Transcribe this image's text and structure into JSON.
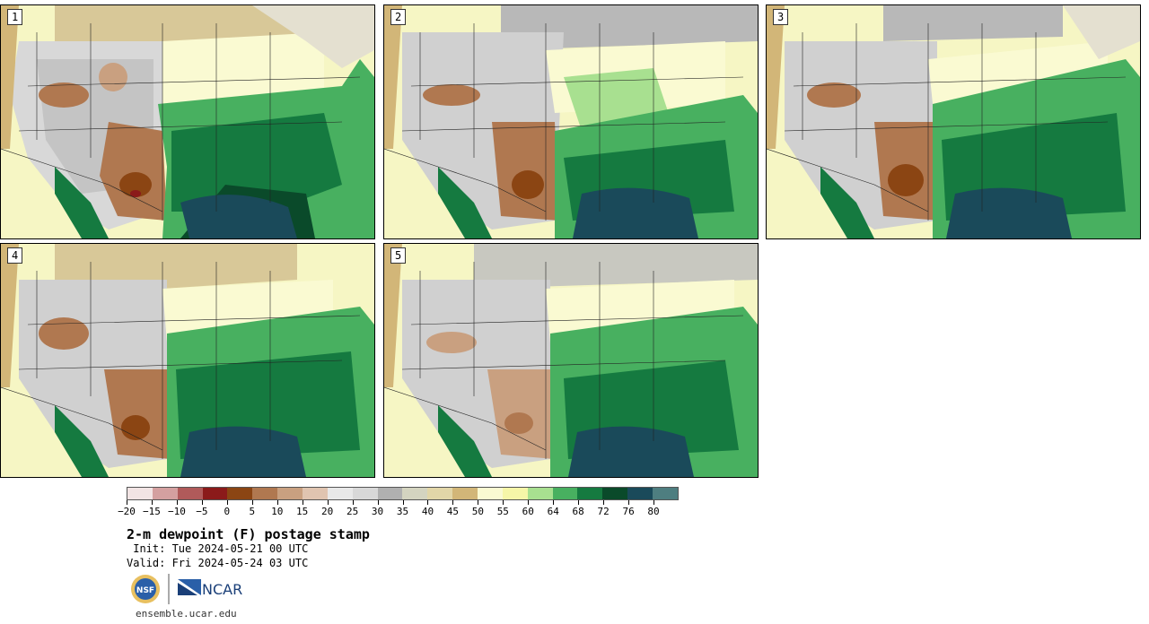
{
  "panels": [
    {
      "label": "1"
    },
    {
      "label": "2"
    },
    {
      "label": "3"
    },
    {
      "label": "4"
    },
    {
      "label": "5"
    }
  ],
  "colorbar": {
    "colors": [
      "#f2e4e4",
      "#d4a0a0",
      "#b05a5a",
      "#8b1a1a",
      "#8b4513",
      "#b07850",
      "#c9a080",
      "#e0c4b0",
      "#e8e8e8",
      "#d8d8d8",
      "#b0b0b0",
      "#d4d4c0",
      "#e2d6a8",
      "#d2b678",
      "#fafad2",
      "#f6f6a8",
      "#a8e090",
      "#48b060",
      "#157a40",
      "#0a4a2a",
      "#1a4a5a",
      "#4e7e80"
    ],
    "tick_labels": [
      "−20",
      "−15",
      "−10",
      "−5",
      "0",
      "5",
      "10",
      "15",
      "20",
      "25",
      "30",
      "35",
      "40",
      "45",
      "50",
      "55",
      "60",
      "64",
      "68",
      "72",
      "76",
      "80"
    ]
  },
  "title": "2-m dewpoint (F) postage stamp",
  "init": " Init: Tue 2024-05-21 00 UTC",
  "valid": "Valid: Fri 2024-05-24 03 UTC",
  "logo": {
    "nsf_text": "NSF",
    "ncar_text": "NCAR"
  },
  "website": "ensemble.ucar.edu"
}
